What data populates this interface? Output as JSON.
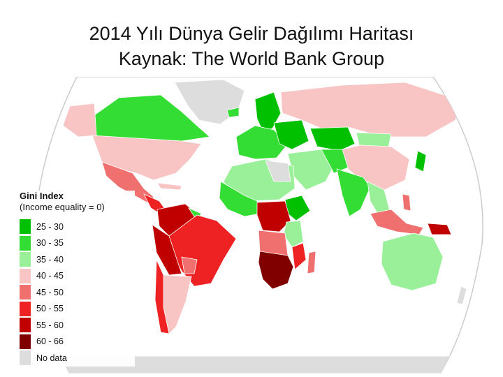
{
  "slide": {
    "title_line1": "2014 Yılı Dünya Gelir Dağılımı Haritası",
    "title_line2": "Kaynak: The World Bank Group"
  },
  "legend": {
    "title": "Gini Index",
    "subtitle": "(Income equality = 0)",
    "items": [
      {
        "label": "25 - 30",
        "color": "#00c000"
      },
      {
        "label": "30 - 35",
        "color": "#33dd33"
      },
      {
        "label": "35 - 40",
        "color": "#99f099"
      },
      {
        "label": "40 - 45",
        "color": "#f8c4c4"
      },
      {
        "label": "45 - 50",
        "color": "#f07070"
      },
      {
        "label": "50 - 55",
        "color": "#ee2222"
      },
      {
        "label": "55 - 60",
        "color": "#c00000"
      },
      {
        "label": "60 - 66",
        "color": "#800000"
      },
      {
        "label": "No data",
        "color": "#dddddd"
      }
    ]
  }
}
